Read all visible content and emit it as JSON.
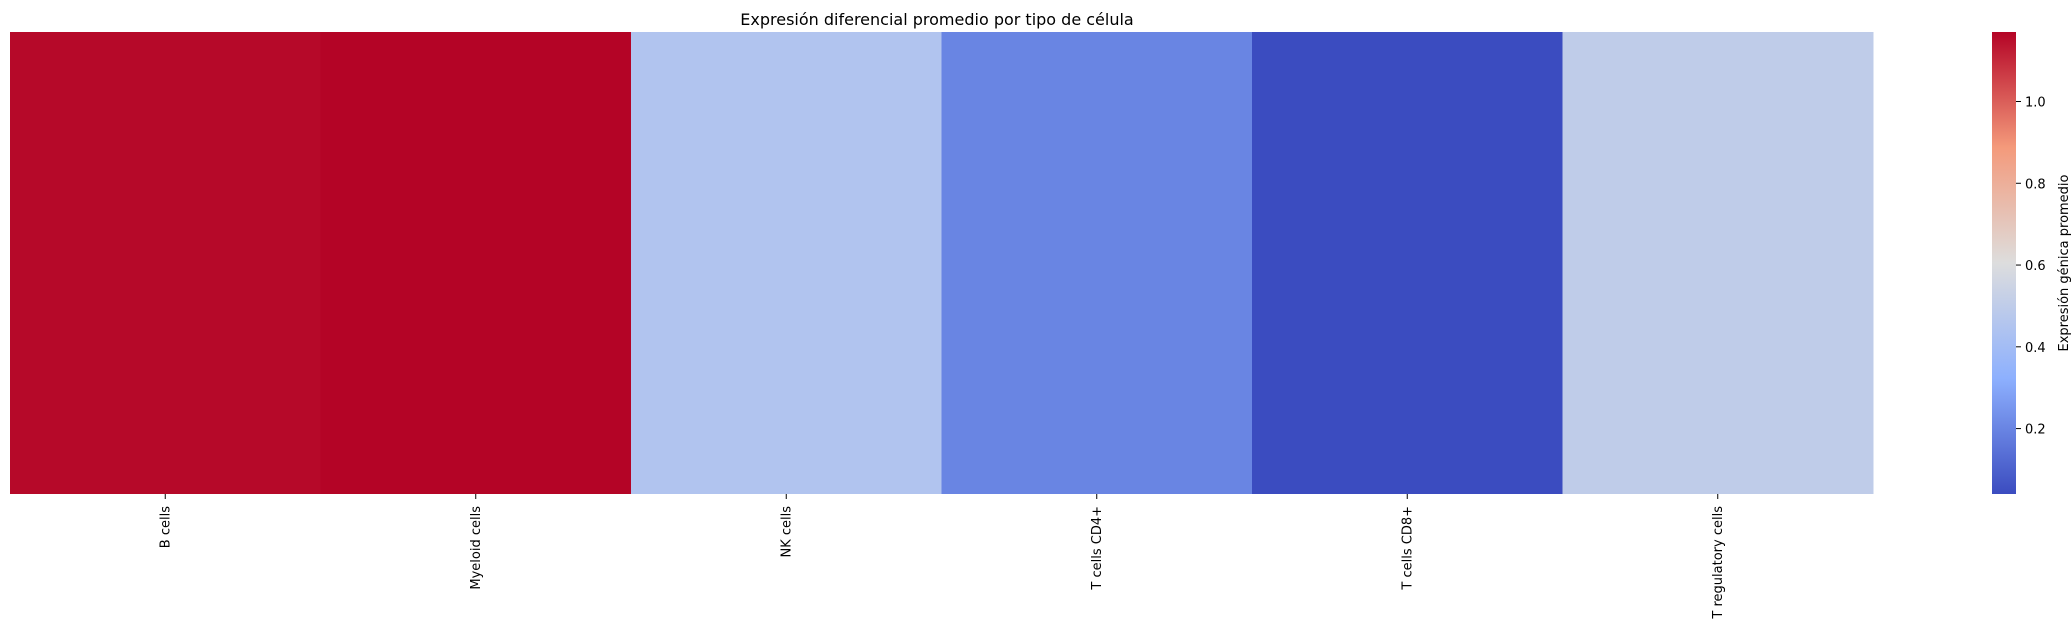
{
  "chart_data": {
    "type": "heatmap",
    "title": "Expresión diferencial promedio por tipo de célula",
    "categories": [
      "B cells",
      "Myeloid cells",
      "NK cells",
      "T cells CD4+",
      "T cells CD8+",
      "T regulatory cells"
    ],
    "values": [
      1.16,
      1.17,
      0.45,
      0.2,
      0.04,
      0.5
    ],
    "colormap": "coolwarm",
    "colorbar": {
      "label": "Expresión génica promedio",
      "range": [
        0.04,
        1.17
      ],
      "ticks": [
        0.2,
        0.4,
        0.6,
        0.8,
        1.0
      ],
      "tick_labels": [
        "0.2",
        "0.4",
        "0.6",
        "0.8",
        "1.0"
      ]
    },
    "ylabel": "",
    "xlabel": ""
  }
}
